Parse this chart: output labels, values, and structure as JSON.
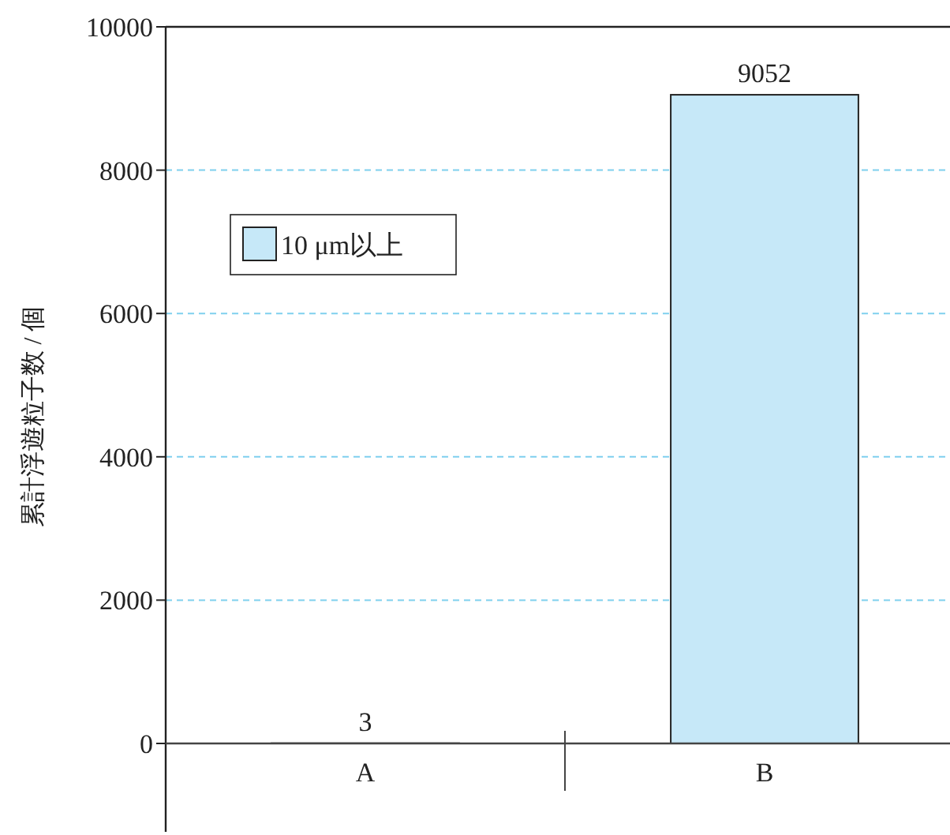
{
  "chart_data": {
    "type": "bar",
    "ylabel": "累計浮遊粒子数 / 個",
    "categories": [
      "A",
      "B"
    ],
    "series": [
      {
        "name": "10 μm以上",
        "color": "#c6e8f8",
        "values": [
          3,
          9052
        ]
      }
    ],
    "ylim": [
      0,
      10000
    ],
    "yticks": [
      0,
      2000,
      4000,
      6000,
      8000,
      10000
    ],
    "grid": "y",
    "legend": "left",
    "data_labels": true
  }
}
